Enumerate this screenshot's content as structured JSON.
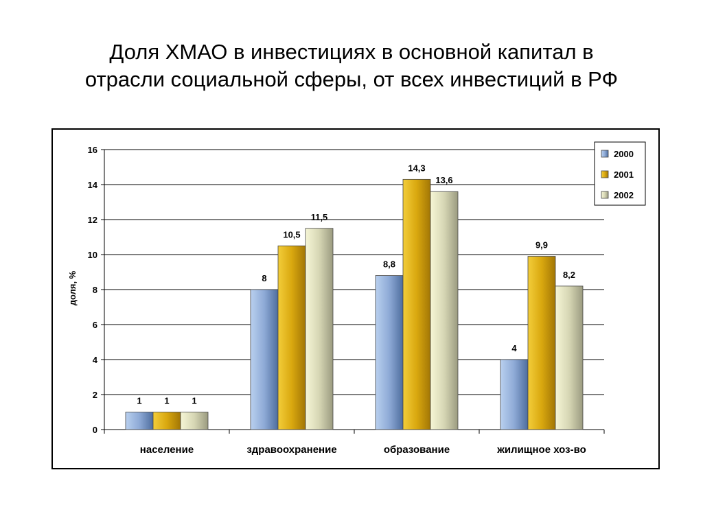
{
  "title": {
    "line1": "Доля ХМАО в инвестициях в основной капитал в",
    "line2": "отрасли социальной сферы, от всех инвестиций в РФ"
  },
  "chart_data": {
    "type": "bar",
    "ylabel": "доля, %",
    "ylim": [
      0,
      16
    ],
    "yticks": [
      "0",
      "2",
      "4",
      "6",
      "8",
      "10",
      "12",
      "14",
      "16"
    ],
    "grid": "horizontal",
    "legend_position": "top-right",
    "categories": [
      "население",
      "здравоохранение",
      "образование",
      "жилищное хоз-во"
    ],
    "series": [
      {
        "name": "2000",
        "color": "#7e9cc9",
        "values": [
          1,
          8,
          8.8,
          4
        ],
        "labels": [
          "1",
          "8",
          "8,8",
          "4"
        ]
      },
      {
        "name": "2001",
        "color": "#d4a20c",
        "values": [
          1,
          10.5,
          14.3,
          9.9
        ],
        "labels": [
          "1",
          "10,5",
          "14,3",
          "9,9"
        ]
      },
      {
        "name": "2002",
        "color": "#cfcfaa",
        "values": [
          1,
          11.5,
          13.6,
          8.2
        ],
        "labels": [
          "1",
          "11,5",
          "13,6",
          "8,2"
        ]
      }
    ]
  }
}
